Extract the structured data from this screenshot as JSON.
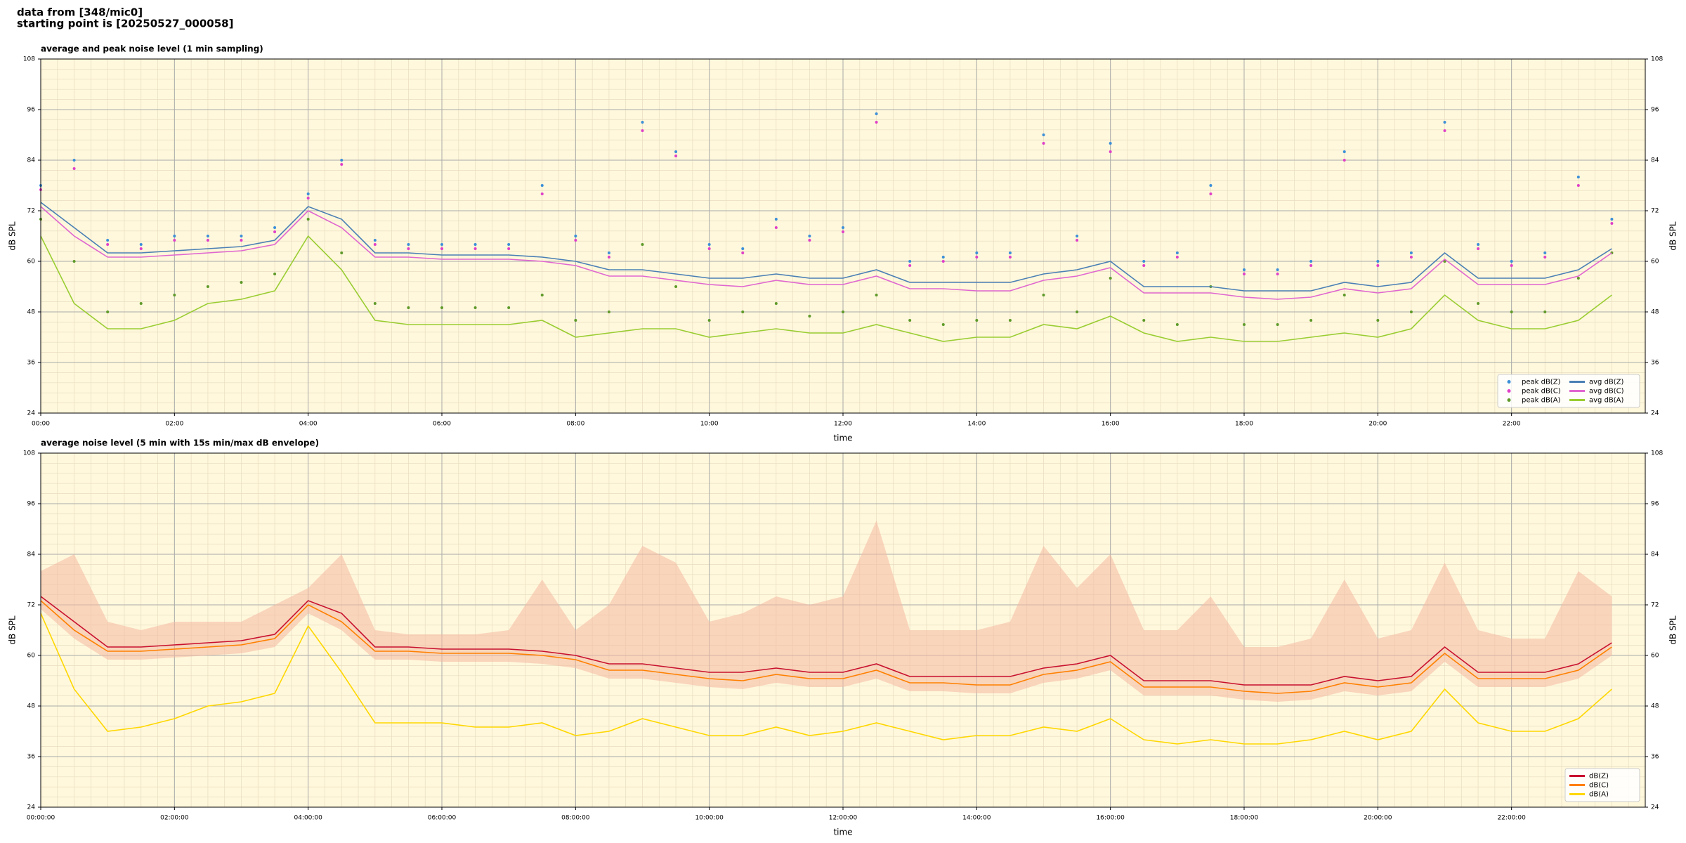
{
  "suptitle": [
    "data from [348/mic0]",
    "starting point is [20250527_000058]"
  ],
  "chart_data": [
    {
      "type": "line",
      "title": "average and peak noise level (1 min sampling)",
      "xlabel": "time",
      "ylabel": "dB SPL",
      "y2label": "dB SPL",
      "background": "#fff8dc",
      "grid": true,
      "minor_grid": {
        "xstep": 0.25,
        "ystep": 2.4
      },
      "legend": "lower right",
      "legend_columns": 2,
      "xlim": [
        0,
        24
      ],
      "ylim": [
        24,
        108
      ],
      "yticks": [
        24,
        36,
        48,
        60,
        72,
        84,
        96,
        108
      ],
      "xticks": [
        {
          "value": 0,
          "label": "00:00"
        },
        {
          "value": 2,
          "label": "02:00"
        },
        {
          "value": 4,
          "label": "04:00"
        },
        {
          "value": 6,
          "label": "06:00"
        },
        {
          "value": 8,
          "label": "08:00"
        },
        {
          "value": 10,
          "label": "10:00"
        },
        {
          "value": 12,
          "label": "12:00"
        },
        {
          "value": 14,
          "label": "14:00"
        },
        {
          "value": 16,
          "label": "16:00"
        },
        {
          "value": 18,
          "label": "18:00"
        },
        {
          "value": 20,
          "label": "20:00"
        },
        {
          "value": 22,
          "label": "22:00"
        }
      ],
      "x": [
        0,
        0.5,
        1,
        1.5,
        2,
        2.5,
        3,
        3.5,
        4,
        4.5,
        5,
        5.5,
        6,
        6.5,
        7,
        7.5,
        8,
        8.5,
        9,
        9.5,
        10,
        10.5,
        11,
        11.5,
        12,
        12.5,
        13,
        13.5,
        14,
        14.5,
        15,
        15.5,
        16,
        16.5,
        17,
        17.5,
        18,
        18.5,
        19,
        19.5,
        20,
        20.5,
        21,
        21.5,
        22,
        22.5,
        23,
        23.5
      ],
      "series": [
        {
          "name": "peak dB(Z)",
          "type": "scatter",
          "color": "#3c8fd8",
          "values": [
            78,
            84,
            65,
            64,
            66,
            66,
            66,
            68,
            76,
            84,
            65,
            64,
            64,
            64,
            64,
            78,
            66,
            62,
            93,
            86,
            64,
            63,
            70,
            66,
            68,
            95,
            60,
            61,
            62,
            62,
            90,
            66,
            88,
            60,
            62,
            78,
            58,
            58,
            60,
            86,
            60,
            62,
            93,
            64,
            60,
            62,
            80,
            70
          ]
        },
        {
          "name": "peak dB(C)",
          "type": "scatter",
          "color": "#e040c8",
          "values": [
            77,
            82,
            64,
            63,
            65,
            65,
            65,
            67,
            75,
            83,
            64,
            63,
            63,
            63,
            63,
            76,
            65,
            61,
            91,
            85,
            63,
            62,
            68,
            65,
            67,
            93,
            59,
            60,
            61,
            61,
            88,
            65,
            86,
            59,
            61,
            76,
            57,
            57,
            59,
            84,
            59,
            61,
            91,
            63,
            59,
            61,
            78,
            69
          ]
        },
        {
          "name": "peak dB(A)",
          "type": "scatter",
          "color": "#5f9a2a",
          "values": [
            70,
            60,
            48,
            50,
            52,
            54,
            55,
            57,
            70,
            62,
            50,
            49,
            49,
            49,
            49,
            52,
            46,
            48,
            64,
            54,
            46,
            48,
            50,
            47,
            48,
            52,
            46,
            45,
            46,
            46,
            52,
            48,
            56,
            46,
            45,
            54,
            45,
            45,
            46,
            52,
            46,
            48,
            60,
            50,
            48,
            48,
            56,
            62
          ]
        },
        {
          "name": "avg dB(Z)",
          "type": "line",
          "color": "#4a7fb5",
          "values": [
            74,
            68,
            62,
            62,
            62.5,
            63,
            63.5,
            65,
            73,
            70,
            62,
            62,
            61.5,
            61.5,
            61.5,
            61,
            60,
            58,
            58,
            57,
            56,
            56,
            57,
            56,
            56,
            58,
            55,
            55,
            55,
            55,
            57,
            58,
            60,
            54,
            54,
            54,
            53,
            53,
            53,
            55,
            54,
            55,
            62,
            56,
            56,
            56,
            58,
            63
          ]
        },
        {
          "name": "avg dB(C)",
          "type": "line",
          "color": "#e066d0",
          "values": [
            73,
            66,
            61,
            61,
            61.5,
            62,
            62.5,
            64,
            72,
            68,
            61,
            61,
            60.5,
            60.5,
            60.5,
            60,
            59,
            56.5,
            56.5,
            55.5,
            54.5,
            54,
            55.5,
            54.5,
            54.5,
            56.5,
            53.5,
            53.5,
            53,
            53,
            55.5,
            56.5,
            58.5,
            52.5,
            52.5,
            52.5,
            51.5,
            51,
            51.5,
            53.5,
            52.5,
            53.5,
            60.5,
            54.5,
            54.5,
            54.5,
            56.5,
            62
          ]
        },
        {
          "name": "avg dB(A)",
          "type": "line",
          "color": "#9acd32",
          "values": [
            66,
            50,
            44,
            44,
            46,
            50,
            51,
            53,
            66,
            58,
            46,
            45,
            45,
            45,
            45,
            46,
            42,
            43,
            44,
            44,
            42,
            43,
            44,
            43,
            43,
            45,
            43,
            41,
            42,
            42,
            45,
            44,
            47,
            43,
            41,
            42,
            41,
            41,
            42,
            43,
            42,
            44,
            52,
            46,
            44,
            44,
            46,
            52
          ]
        }
      ]
    },
    {
      "type": "line",
      "title": "average noise level (5 min with 15s min/max dB envelope)",
      "xlabel": "time",
      "ylabel": "dB SPL",
      "y2label": "dB SPL",
      "background": "#fff8dc",
      "grid": true,
      "minor_grid": {
        "xstep": 0.25,
        "ystep": 2.4
      },
      "legend": "lower right",
      "legend_columns": 1,
      "xlim": [
        0,
        24
      ],
      "ylim": [
        24,
        108
      ],
      "yticks": [
        24,
        36,
        48,
        60,
        72,
        84,
        96,
        108
      ],
      "xticks": [
        {
          "value": 0,
          "label": "00:00:00"
        },
        {
          "value": 2,
          "label": "02:00:00"
        },
        {
          "value": 4,
          "label": "04:00:00"
        },
        {
          "value": 6,
          "label": "06:00:00"
        },
        {
          "value": 8,
          "label": "08:00:00"
        },
        {
          "value": 10,
          "label": "10:00:00"
        },
        {
          "value": 12,
          "label": "12:00:00"
        },
        {
          "value": 14,
          "label": "14:00:00"
        },
        {
          "value": 16,
          "label": "16:00:00"
        },
        {
          "value": 18,
          "label": "18:00:00"
        },
        {
          "value": 20,
          "label": "20:00:00"
        },
        {
          "value": 22,
          "label": "22:00:00"
        }
      ],
      "x": [
        0,
        0.5,
        1,
        1.5,
        2,
        2.5,
        3,
        3.5,
        4,
        4.5,
        5,
        5.5,
        6,
        6.5,
        7,
        7.5,
        8,
        8.5,
        9,
        9.5,
        10,
        10.5,
        11,
        11.5,
        12,
        12.5,
        13,
        13.5,
        14,
        14.5,
        15,
        15.5,
        16,
        16.5,
        17,
        17.5,
        18,
        18.5,
        19,
        19.5,
        20,
        20.5,
        21,
        21.5,
        22,
        22.5,
        23,
        23.5
      ],
      "band": {
        "color": "#f4b8a0",
        "high": [
          80,
          84,
          68,
          66,
          68,
          68,
          68,
          72,
          76,
          84,
          66,
          65,
          65,
          65,
          66,
          78,
          66,
          72,
          86,
          82,
          68,
          70,
          74,
          72,
          74,
          92,
          66,
          66,
          66,
          68,
          86,
          76,
          84,
          66,
          66,
          74,
          62,
          62,
          64,
          78,
          64,
          66,
          82,
          66,
          64,
          64,
          80,
          74
        ],
        "low": [
          71,
          64,
          59,
          59,
          59.5,
          60,
          60.5,
          62,
          70,
          66,
          59,
          59,
          58.5,
          58.5,
          58.5,
          58,
          57,
          54.5,
          54.5,
          53.5,
          52.5,
          52,
          53.5,
          52.5,
          52.5,
          54.5,
          51.5,
          51.5,
          51,
          51,
          53.5,
          54.5,
          56.5,
          50.5,
          50.5,
          50.5,
          49.5,
          49,
          49.5,
          51.5,
          50.5,
          51.5,
          58.5,
          52.5,
          52.5,
          52.5,
          54.5,
          60
        ]
      },
      "series": [
        {
          "name": "dB(Z)",
          "type": "line",
          "color": "#c8102e",
          "values": [
            74,
            68,
            62,
            62,
            62.5,
            63,
            63.5,
            65,
            73,
            70,
            62,
            62,
            61.5,
            61.5,
            61.5,
            61,
            60,
            58,
            58,
            57,
            56,
            56,
            57,
            56,
            56,
            58,
            55,
            55,
            55,
            55,
            57,
            58,
            60,
            54,
            54,
            54,
            53,
            53,
            53,
            55,
            54,
            55,
            62,
            56,
            56,
            56,
            58,
            63
          ]
        },
        {
          "name": "dB(C)",
          "type": "line",
          "color": "#ff8000",
          "values": [
            73,
            66,
            61,
            61,
            61.5,
            62,
            62.5,
            64,
            72,
            68,
            61,
            61,
            60.5,
            60.5,
            60.5,
            60,
            59,
            56.5,
            56.5,
            55.5,
            54.5,
            54,
            55.5,
            54.5,
            54.5,
            56.5,
            53.5,
            53.5,
            53,
            53,
            55.5,
            56.5,
            58.5,
            52.5,
            52.5,
            52.5,
            51.5,
            51,
            51.5,
            53.5,
            52.5,
            53.5,
            60.5,
            54.5,
            54.5,
            54.5,
            56.5,
            62
          ]
        },
        {
          "name": "dB(A)",
          "type": "line",
          "color": "#ffd700",
          "values": [
            70,
            52,
            42,
            43,
            45,
            48,
            49,
            51,
            67,
            56,
            44,
            44,
            44,
            43,
            43,
            44,
            41,
            42,
            45,
            43,
            41,
            41,
            43,
            41,
            42,
            44,
            42,
            40,
            41,
            41,
            43,
            42,
            45,
            40,
            39,
            40,
            39,
            39,
            40,
            42,
            40,
            42,
            52,
            44,
            42,
            42,
            45,
            52
          ]
        }
      ]
    }
  ]
}
